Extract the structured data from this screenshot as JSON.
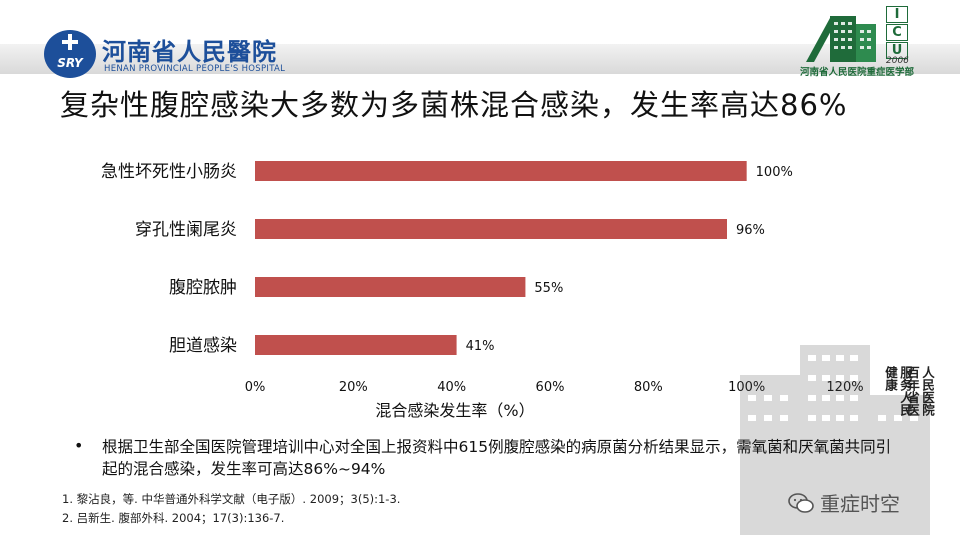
{
  "header": {
    "hospital_name_cn": "河南省人民醫院",
    "hospital_name_en": "HENAN PROVINCIAL PEOPLE'S HOSPITAL",
    "logo_abbr": "SRY",
    "icu_letters": [
      "I",
      "C",
      "U"
    ],
    "icu_year": "2006",
    "icu_dept_cn": "河南省人民医院重症医学部"
  },
  "slide": {
    "title": "复杂性腹腔感染大多数为多菌株混合感染，发生率高达86%"
  },
  "chart_data": {
    "type": "bar",
    "orientation": "horizontal",
    "categories": [
      "急性坏死性小肠炎",
      "穿孔性阑尾炎",
      "腹腔脓肿",
      "胆道感染"
    ],
    "values": [
      100,
      96,
      55,
      41
    ],
    "data_labels": [
      "100%",
      "96%",
      "55%",
      "41%"
    ],
    "xlabel": "混合感染发生率（%）",
    "xlim": [
      0,
      120
    ],
    "xticks": [
      "0%",
      "20%",
      "40%",
      "60%",
      "80%",
      "100%",
      "120%"
    ],
    "grid": false,
    "bar_color": "#c0504d"
  },
  "bullet_text": "根据卫生部全国医院管理培训中心对全国上报资料中615例腹腔感染的病原菌分析结果显示，需氧菌和厌氧菌共同引起的混合感染，发生率可高达86%~94%",
  "references": [
    "1.  黎沾良，等. 中华普通外科学文献（电子版）. 2009；3(5):1-3.",
    "2.  吕新生. 腹部外科. 2004；17(3):136-7."
  ],
  "side_motto": [
    "人民医院",
    "百年省医",
    "服务人民",
    "健康"
  ],
  "watermark": "重症时空",
  "colors": {
    "hospital_blue": "#1d4f9a",
    "icu_green": "#1f6b3a",
    "bar": "#c0504d"
  }
}
